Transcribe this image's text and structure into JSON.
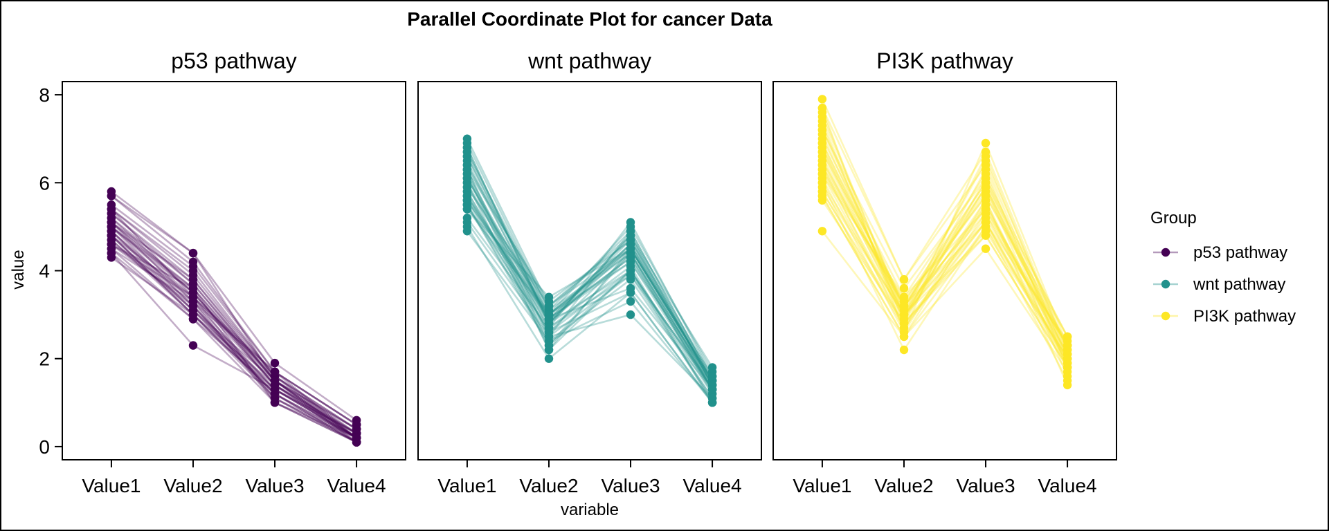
{
  "chart_data": {
    "type": "parallel-coordinates",
    "title": "Parallel Coordinate Plot for cancer Data",
    "xlabel": "variable",
    "ylabel": "value",
    "variables": [
      "Value1",
      "Value2",
      "Value3",
      "Value4"
    ],
    "ylim": [
      -0.3,
      8.3
    ],
    "yticks": [
      0,
      2,
      4,
      6,
      8
    ],
    "grid": false,
    "legend": {
      "title": "Group",
      "placement": "right"
    },
    "series": [
      {
        "name": "p53 pathway",
        "color": "#440154",
        "lines": [
          [
            5.8,
            4.4,
            1.9,
            0.6
          ],
          [
            5.7,
            4.2,
            1.7,
            0.5
          ],
          [
            5.5,
            4.1,
            1.7,
            0.5
          ],
          [
            5.4,
            3.9,
            1.6,
            0.4
          ],
          [
            5.3,
            3.8,
            1.6,
            0.4
          ],
          [
            5.2,
            3.7,
            1.5,
            0.4
          ],
          [
            5.1,
            3.6,
            1.5,
            0.3
          ],
          [
            5.1,
            3.5,
            1.4,
            0.3
          ],
          [
            5.0,
            3.5,
            1.4,
            0.3
          ],
          [
            5.0,
            3.4,
            1.4,
            0.2
          ],
          [
            4.9,
            3.3,
            1.3,
            0.2
          ],
          [
            4.9,
            3.2,
            1.3,
            0.2
          ],
          [
            4.8,
            3.1,
            1.3,
            0.2
          ],
          [
            4.8,
            3.0,
            1.2,
            0.2
          ],
          [
            4.7,
            3.0,
            1.2,
            0.1
          ],
          [
            4.7,
            3.1,
            1.2,
            0.1
          ],
          [
            4.6,
            3.2,
            1.1,
            0.1
          ],
          [
            4.6,
            3.4,
            1.1,
            0.1
          ],
          [
            4.5,
            3.3,
            1.0,
            0.1
          ],
          [
            4.4,
            2.9,
            1.0,
            0.1
          ],
          [
            4.3,
            3.0,
            1.1,
            0.2
          ],
          [
            4.4,
            2.3,
            1.3,
            0.3
          ],
          [
            5.0,
            3.6,
            1.4,
            0.2
          ],
          [
            5.4,
            4.0,
            1.6,
            0.3
          ],
          [
            5.1,
            3.8,
            1.5,
            0.2
          ],
          [
            4.8,
            3.4,
            1.6,
            0.2
          ],
          [
            5.2,
            3.5,
            1.5,
            0.2
          ],
          [
            4.9,
            3.1,
            1.5,
            0.1
          ],
          [
            5.0,
            3.2,
            1.2,
            0.2
          ],
          [
            4.5,
            2.9,
            1.3,
            0.3
          ],
          [
            5.3,
            3.7,
            1.5,
            0.2
          ],
          [
            4.6,
            3.6,
            1.0,
            0.2
          ],
          [
            5.7,
            4.4,
            1.5,
            0.4
          ],
          [
            5.4,
            3.4,
            1.7,
            0.2
          ],
          [
            5.1,
            3.3,
            1.7,
            0.5
          ],
          [
            4.8,
            3.0,
            1.4,
            0.1
          ]
        ]
      },
      {
        "name": "wnt pathway",
        "color": "#21918c",
        "lines": [
          [
            7.0,
            3.2,
            4.7,
            1.4
          ],
          [
            6.9,
            3.1,
            4.9,
            1.5
          ],
          [
            6.8,
            2.8,
            4.8,
            1.4
          ],
          [
            6.7,
            3.1,
            4.4,
            1.4
          ],
          [
            6.6,
            2.9,
            4.6,
            1.3
          ],
          [
            6.5,
            2.8,
            4.6,
            1.5
          ],
          [
            6.4,
            3.2,
            4.5,
            1.5
          ],
          [
            6.3,
            3.3,
            4.7,
            1.6
          ],
          [
            6.2,
            2.2,
            4.5,
            1.5
          ],
          [
            6.1,
            2.9,
            4.7,
            1.4
          ],
          [
            6.0,
            2.7,
            5.1,
            1.6
          ],
          [
            6.0,
            2.2,
            4.0,
            1.0
          ],
          [
            5.9,
            3.0,
            4.2,
            1.5
          ],
          [
            5.8,
            2.7,
            4.1,
            1.0
          ],
          [
            5.7,
            2.8,
            4.5,
            1.3
          ],
          [
            5.7,
            2.6,
            3.5,
            1.0
          ],
          [
            5.6,
            2.9,
            3.6,
            1.3
          ],
          [
            5.6,
            3.0,
            4.5,
            1.5
          ],
          [
            5.5,
            2.3,
            4.0,
            1.3
          ],
          [
            5.5,
            2.4,
            3.8,
            1.1
          ],
          [
            5.4,
            3.0,
            4.5,
            1.5
          ],
          [
            5.2,
            2.7,
            3.9,
            1.4
          ],
          [
            5.1,
            2.5,
            3.0,
            1.1
          ],
          [
            5.0,
            2.0,
            3.5,
            1.0
          ],
          [
            4.9,
            2.4,
            3.3,
            1.0
          ],
          [
            6.3,
            2.5,
            4.9,
            1.5
          ],
          [
            6.1,
            2.8,
            4.0,
            1.3
          ],
          [
            6.6,
            3.0,
            4.4,
            1.4
          ],
          [
            6.8,
            2.8,
            4.8,
            1.4
          ],
          [
            6.7,
            3.0,
            5.0,
            1.7
          ],
          [
            5.8,
            2.6,
            4.0,
            1.2
          ],
          [
            5.5,
            2.6,
            4.4,
            1.2
          ],
          [
            6.1,
            3.0,
            4.6,
            1.4
          ],
          [
            5.7,
            2.9,
            4.2,
            1.3
          ],
          [
            6.2,
            2.9,
            4.3,
            1.3
          ],
          [
            5.9,
            3.2,
            4.8,
            1.8
          ],
          [
            6.4,
            2.9,
            4.3,
            1.3
          ],
          [
            5.6,
            2.5,
            3.9,
            1.1
          ],
          [
            6.3,
            2.3,
            4.4,
            1.3
          ],
          [
            5.4,
            3.4,
            4.5,
            1.6
          ]
        ]
      },
      {
        "name": "PI3K pathway",
        "color": "#fde725",
        "lines": [
          [
            7.9,
            3.8,
            6.4,
            2.0
          ],
          [
            7.7,
            3.8,
            6.7,
            2.2
          ],
          [
            7.7,
            2.6,
            6.9,
            2.3
          ],
          [
            7.6,
            3.0,
            6.6,
            2.1
          ],
          [
            7.4,
            2.8,
            6.1,
            1.9
          ],
          [
            7.3,
            2.9,
            6.3,
            1.8
          ],
          [
            7.2,
            3.6,
            6.1,
            2.5
          ],
          [
            7.2,
            3.2,
            6.0,
            1.8
          ],
          [
            7.1,
            3.0,
            5.9,
            2.1
          ],
          [
            6.9,
            3.1,
            5.4,
            2.1
          ],
          [
            6.8,
            3.0,
            5.5,
            2.1
          ],
          [
            6.7,
            3.3,
            5.7,
            2.5
          ],
          [
            6.7,
            3.0,
            5.2,
            2.3
          ],
          [
            6.5,
            3.0,
            5.8,
            2.2
          ],
          [
            6.5,
            3.2,
            5.1,
            2.0
          ],
          [
            6.4,
            2.7,
            5.3,
            1.9
          ],
          [
            6.4,
            3.2,
            5.3,
            2.3
          ],
          [
            6.3,
            3.3,
            6.0,
            2.5
          ],
          [
            6.3,
            2.9,
            5.6,
            1.8
          ],
          [
            6.2,
            2.8,
            4.8,
            1.8
          ],
          [
            6.1,
            2.6,
            5.6,
            1.4
          ],
          [
            6.0,
            2.2,
            5.0,
            1.5
          ],
          [
            6.0,
            3.0,
            4.8,
            1.8
          ],
          [
            5.9,
            3.0,
            5.1,
            1.8
          ],
          [
            5.8,
            2.7,
            5.1,
            1.9
          ],
          [
            5.8,
            2.8,
            5.1,
            2.4
          ],
          [
            5.7,
            2.5,
            5.0,
            2.0
          ],
          [
            5.6,
            2.8,
            4.9,
            2.0
          ],
          [
            4.9,
            2.5,
            4.5,
            1.7
          ],
          [
            6.9,
            3.2,
            5.7,
            2.3
          ],
          [
            7.0,
            3.4,
            6.2,
            2.0
          ],
          [
            6.6,
            2.9,
            5.9,
            1.6
          ],
          [
            7.5,
            3.1,
            6.5,
            2.2
          ],
          [
            6.2,
            3.4,
            5.4,
            2.3
          ],
          [
            5.7,
            2.5,
            5.5,
            2.0
          ],
          [
            6.8,
            3.2,
            5.9,
            2.3
          ]
        ]
      }
    ]
  }
}
